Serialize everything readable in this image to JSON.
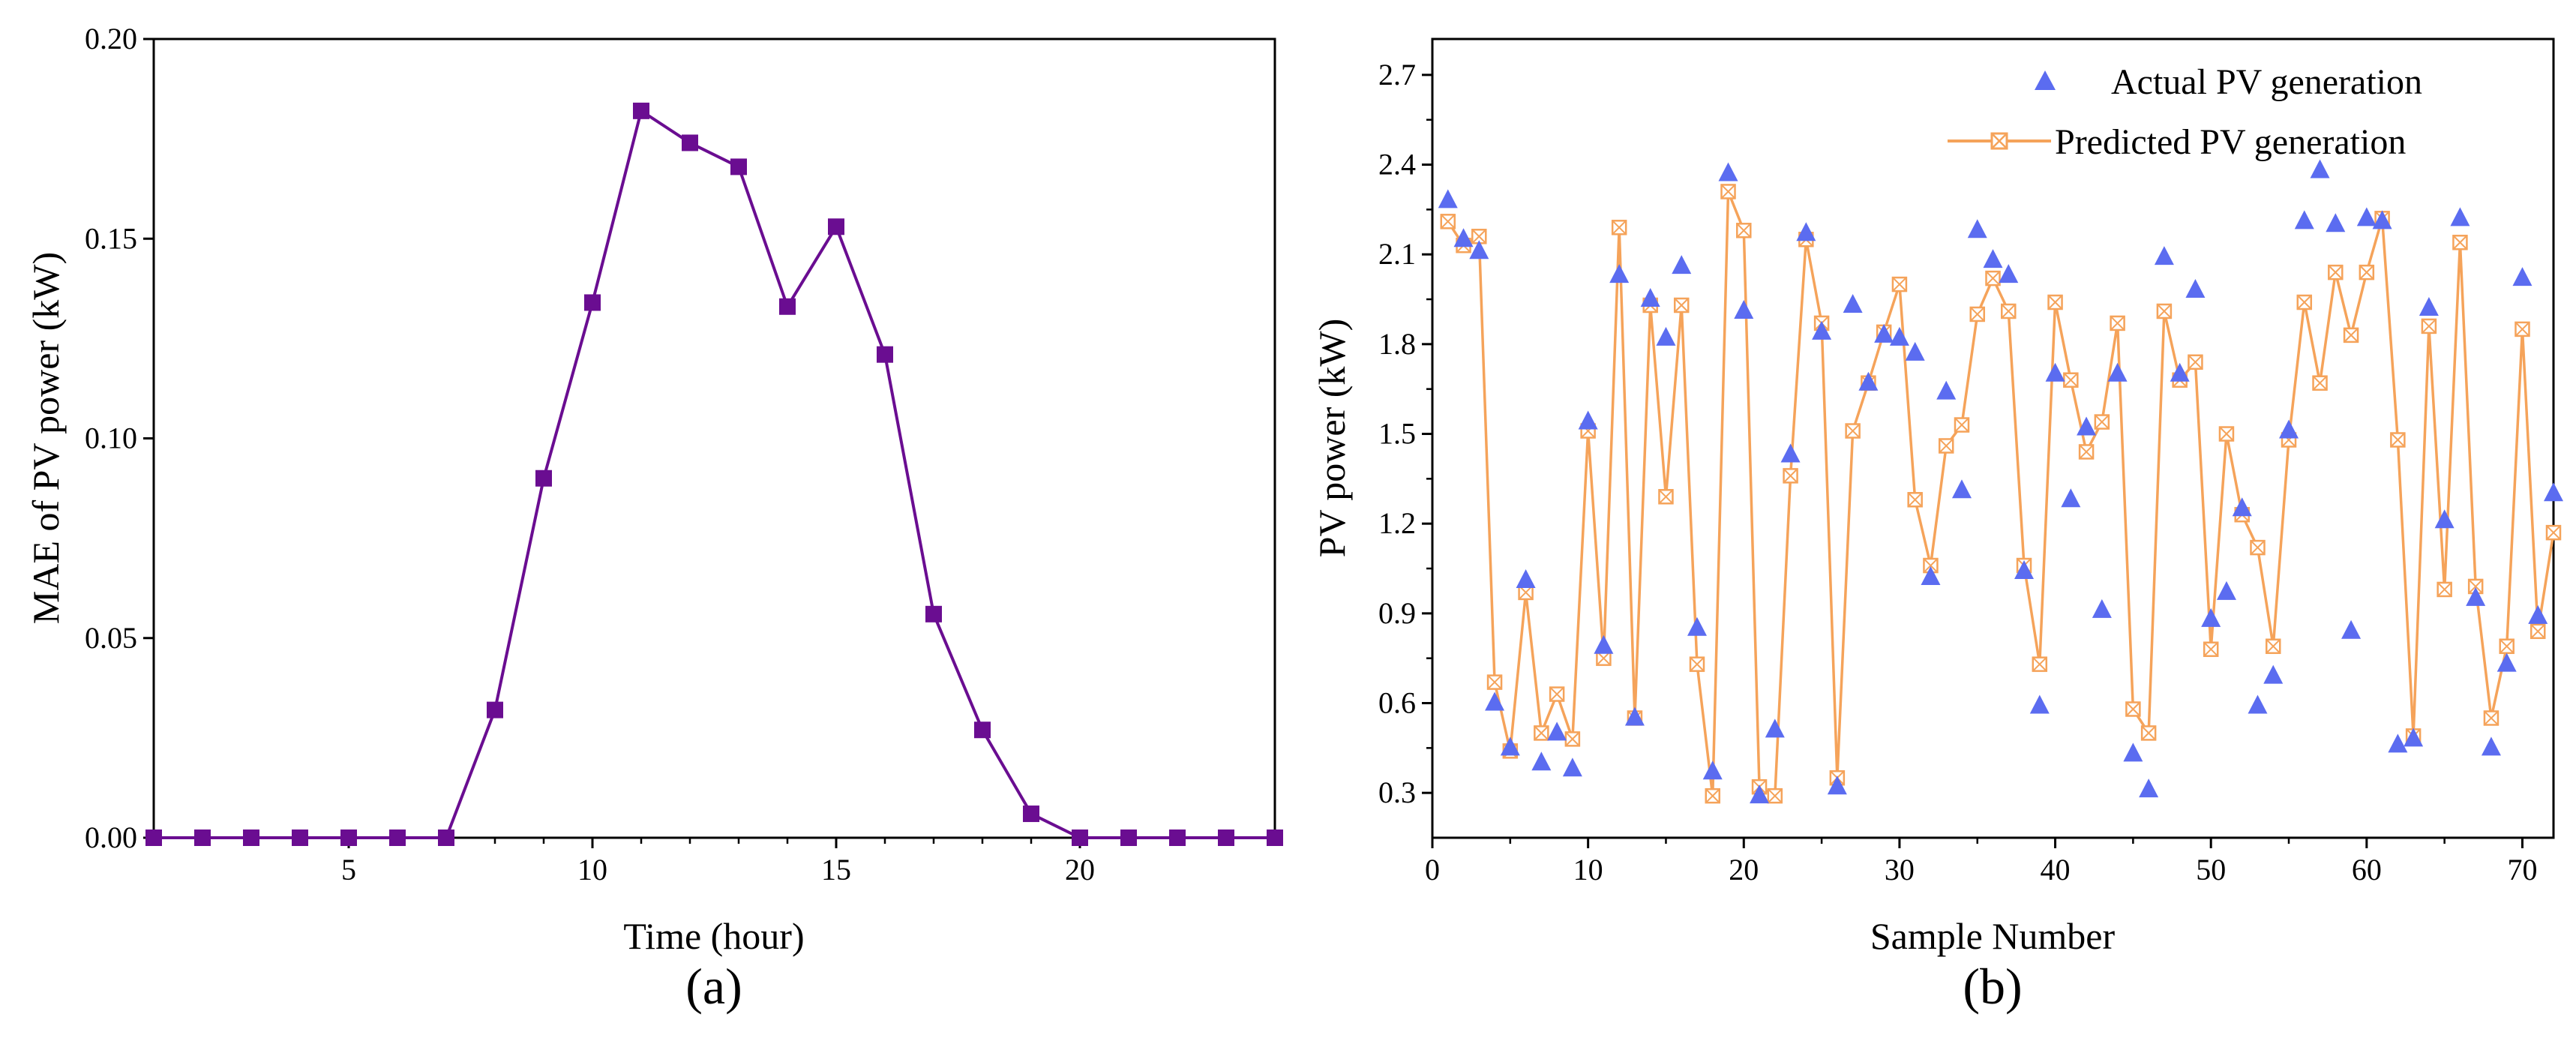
{
  "chart_data": [
    {
      "type": "line",
      "caption": "(a)",
      "xlabel": "Time (hour)",
      "ylabel": "MAE of PV power (kW)",
      "xlim": [
        1,
        24
      ],
      "ylim": [
        0,
        0.2
      ],
      "xticks": [
        5,
        10,
        15,
        20
      ],
      "xticks_minor": [
        1,
        2,
        3,
        4,
        6,
        7,
        8,
        9,
        11,
        12,
        13,
        14,
        16,
        17,
        18,
        19,
        21,
        22,
        23,
        24
      ],
      "yticks": [
        "0.00",
        "0.05",
        "0.10",
        "0.15",
        "0.20"
      ],
      "color": "#6a0d91",
      "series": [
        {
          "name": "MAE",
          "x": [
            1,
            2,
            3,
            4,
            5,
            6,
            7,
            8,
            9,
            10,
            11,
            12,
            13,
            14,
            15,
            16,
            17,
            18,
            19,
            20,
            21,
            22,
            23,
            24
          ],
          "values": [
            0,
            0,
            0,
            0,
            0,
            0,
            0,
            0.032,
            0.09,
            0.134,
            0.182,
            0.174,
            0.168,
            0.133,
            0.153,
            0.121,
            0.056,
            0.027,
            0.006,
            0,
            0,
            0,
            0,
            0
          ]
        }
      ]
    },
    {
      "type": "scatter+line",
      "caption": "(b)",
      "xlabel": "Sample Number",
      "ylabel": "PV power (kW)",
      "xlim": [
        0,
        72
      ],
      "ylim": [
        0.15,
        2.82
      ],
      "xticks": [
        0,
        10,
        20,
        30,
        40,
        50,
        60,
        70
      ],
      "yticks": [
        "0.3",
        "0.6",
        "0.9",
        "1.2",
        "1.5",
        "1.8",
        "2.1",
        "2.4",
        "2.7"
      ],
      "legend_position": "top-right",
      "series": [
        {
          "name": "Actual PV generation",
          "marker": "triangle",
          "color": "#5b6cf0",
          "x": [
            1,
            2,
            3,
            4,
            5,
            6,
            7,
            8,
            9,
            10,
            11,
            12,
            13,
            14,
            15,
            16,
            17,
            18,
            19,
            20,
            21,
            22,
            23,
            24,
            25,
            26,
            27,
            28,
            29,
            30,
            31,
            32,
            33,
            34,
            35,
            36,
            37,
            38,
            39,
            40,
            41,
            42,
            43,
            44,
            45,
            46,
            47,
            48,
            49,
            50,
            51,
            52,
            53,
            54,
            55,
            56,
            57,
            58,
            59,
            60,
            61,
            62,
            63,
            64,
            65,
            66,
            67,
            68,
            69,
            70,
            71,
            72
          ],
          "values": [
            2.28,
            2.15,
            2.11,
            0.6,
            0.45,
            1.01,
            0.4,
            0.5,
            0.38,
            1.54,
            0.79,
            2.03,
            0.55,
            1.95,
            1.82,
            2.06,
            0.85,
            0.37,
            2.37,
            1.91,
            0.29,
            0.51,
            1.43,
            2.17,
            1.84,
            0.32,
            1.93,
            1.67,
            1.83,
            1.82,
            1.77,
            1.02,
            1.64,
            1.31,
            2.18,
            2.08,
            2.03,
            1.04,
            0.59,
            1.7,
            1.28,
            1.52,
            0.91,
            1.7,
            0.43,
            0.31,
            2.09,
            1.7,
            1.98,
            0.88,
            0.97,
            1.25,
            0.59,
            0.69,
            1.51,
            2.21,
            2.38,
            2.2,
            0.84,
            2.22,
            2.21,
            0.46,
            0.48,
            1.92,
            1.21,
            2.22,
            0.95,
            0.45,
            0.73,
            2.02,
            0.89,
            1.3
          ]
        },
        {
          "name": "Predicted PV generation",
          "marker": "crossed-square",
          "color": "#f5a35a",
          "x": [
            1,
            2,
            3,
            4,
            5,
            6,
            7,
            8,
            9,
            10,
            11,
            12,
            13,
            14,
            15,
            16,
            17,
            18,
            19,
            20,
            21,
            22,
            23,
            24,
            25,
            26,
            27,
            28,
            29,
            30,
            31,
            32,
            33,
            34,
            35,
            36,
            37,
            38,
            39,
            40,
            41,
            42,
            43,
            44,
            45,
            46,
            47,
            48,
            49,
            50,
            51,
            52,
            53,
            54,
            55,
            56,
            57,
            58,
            59,
            60,
            61,
            62,
            63,
            64,
            65,
            66,
            67,
            68,
            69,
            70,
            71,
            72
          ],
          "values": [
            2.21,
            2.13,
            2.16,
            0.67,
            0.44,
            0.97,
            0.5,
            0.63,
            0.48,
            1.51,
            0.75,
            2.19,
            0.55,
            1.93,
            1.29,
            1.93,
            0.73,
            0.29,
            2.31,
            2.18,
            0.32,
            0.29,
            1.36,
            2.15,
            1.87,
            0.35,
            1.51,
            1.67,
            1.84,
            2.0,
            1.28,
            1.06,
            1.46,
            1.53,
            1.9,
            2.02,
            1.91,
            1.06,
            0.73,
            1.94,
            1.68,
            1.44,
            1.54,
            1.87,
            0.58,
            0.5,
            1.91,
            1.68,
            1.74,
            0.78,
            1.5,
            1.23,
            1.12,
            0.79,
            1.48,
            1.94,
            1.67,
            2.04,
            1.83,
            2.04,
            2.22,
            1.48,
            0.49,
            1.86,
            0.98,
            2.14,
            0.99,
            0.55,
            0.79,
            1.85,
            0.84,
            1.17
          ]
        }
      ]
    }
  ]
}
